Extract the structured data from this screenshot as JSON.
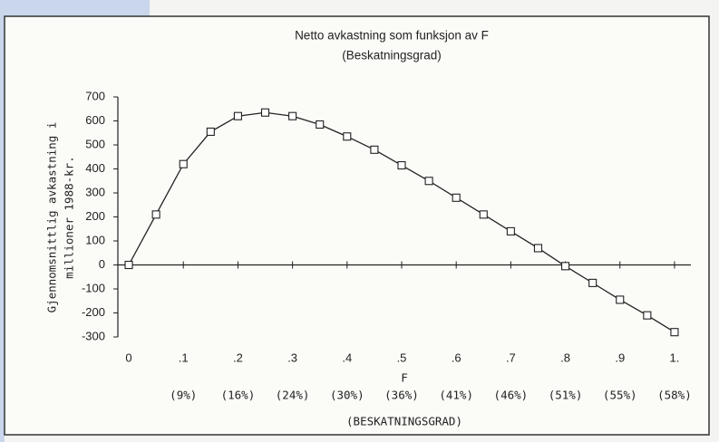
{
  "chart_data": {
    "type": "line",
    "title": "Netto avkastning som funksjon av F",
    "subtitle": "(Beskatningsgrad)",
    "y_label": [
      "Gjennomsnittlig avkastning i",
      "millioner 1988-kr."
    ],
    "x_label": "F",
    "x_secondary_title": "(BESKATNINGSGRAD)",
    "x": [
      0,
      0.05,
      0.1,
      0.15,
      0.2,
      0.25,
      0.3,
      0.35,
      0.4,
      0.45,
      0.5,
      0.55,
      0.6,
      0.65,
      0.7,
      0.75,
      0.8,
      0.85,
      0.9,
      0.95,
      1.0
    ],
    "values": [
      0,
      210,
      420,
      555,
      620,
      635,
      620,
      585,
      535,
      480,
      415,
      350,
      280,
      210,
      140,
      70,
      -5,
      -75,
      -145,
      -210,
      -280
    ],
    "color": "#222222",
    "xlim": [
      -0.02,
      1.03
    ],
    "ylim": [
      -300,
      700
    ],
    "xticks": [
      0,
      {
        "value": 0.1,
        "label": ".1"
      },
      {
        "value": 0.2,
        "label": ".2"
      },
      {
        "value": 0.3,
        "label": ".3"
      },
      {
        "value": 0.4,
        "label": ".4"
      },
      {
        "value": 0.5,
        "label": ".5"
      },
      {
        "value": 0.6,
        "label": ".6"
      },
      {
        "value": 0.7,
        "label": ".7"
      },
      {
        "value": 0.8,
        "label": ".8"
      },
      {
        "value": 0.9,
        "label": ".9"
      },
      {
        "value": 1,
        "label": "1."
      }
    ],
    "x_secondary_labels": [
      {
        "value": 0.1,
        "label": "(9%)"
      },
      {
        "value": 0.2,
        "label": "(16%)"
      },
      {
        "value": 0.3,
        "label": "(24%)"
      },
      {
        "value": 0.4,
        "label": "(30%)"
      },
      {
        "value": 0.5,
        "label": "(36%)"
      },
      {
        "value": 0.6,
        "label": "(41%)"
      },
      {
        "value": 0.7,
        "label": "(46%)"
      },
      {
        "value": 0.8,
        "label": "(51%)"
      },
      {
        "value": 0.9,
        "label": "(55%)"
      },
      {
        "value": 1,
        "label": "(58%)"
      }
    ],
    "yticks": [
      -300,
      -200,
      -100,
      0,
      100,
      200,
      300,
      400,
      500,
      600,
      700
    ],
    "grid": false
  }
}
